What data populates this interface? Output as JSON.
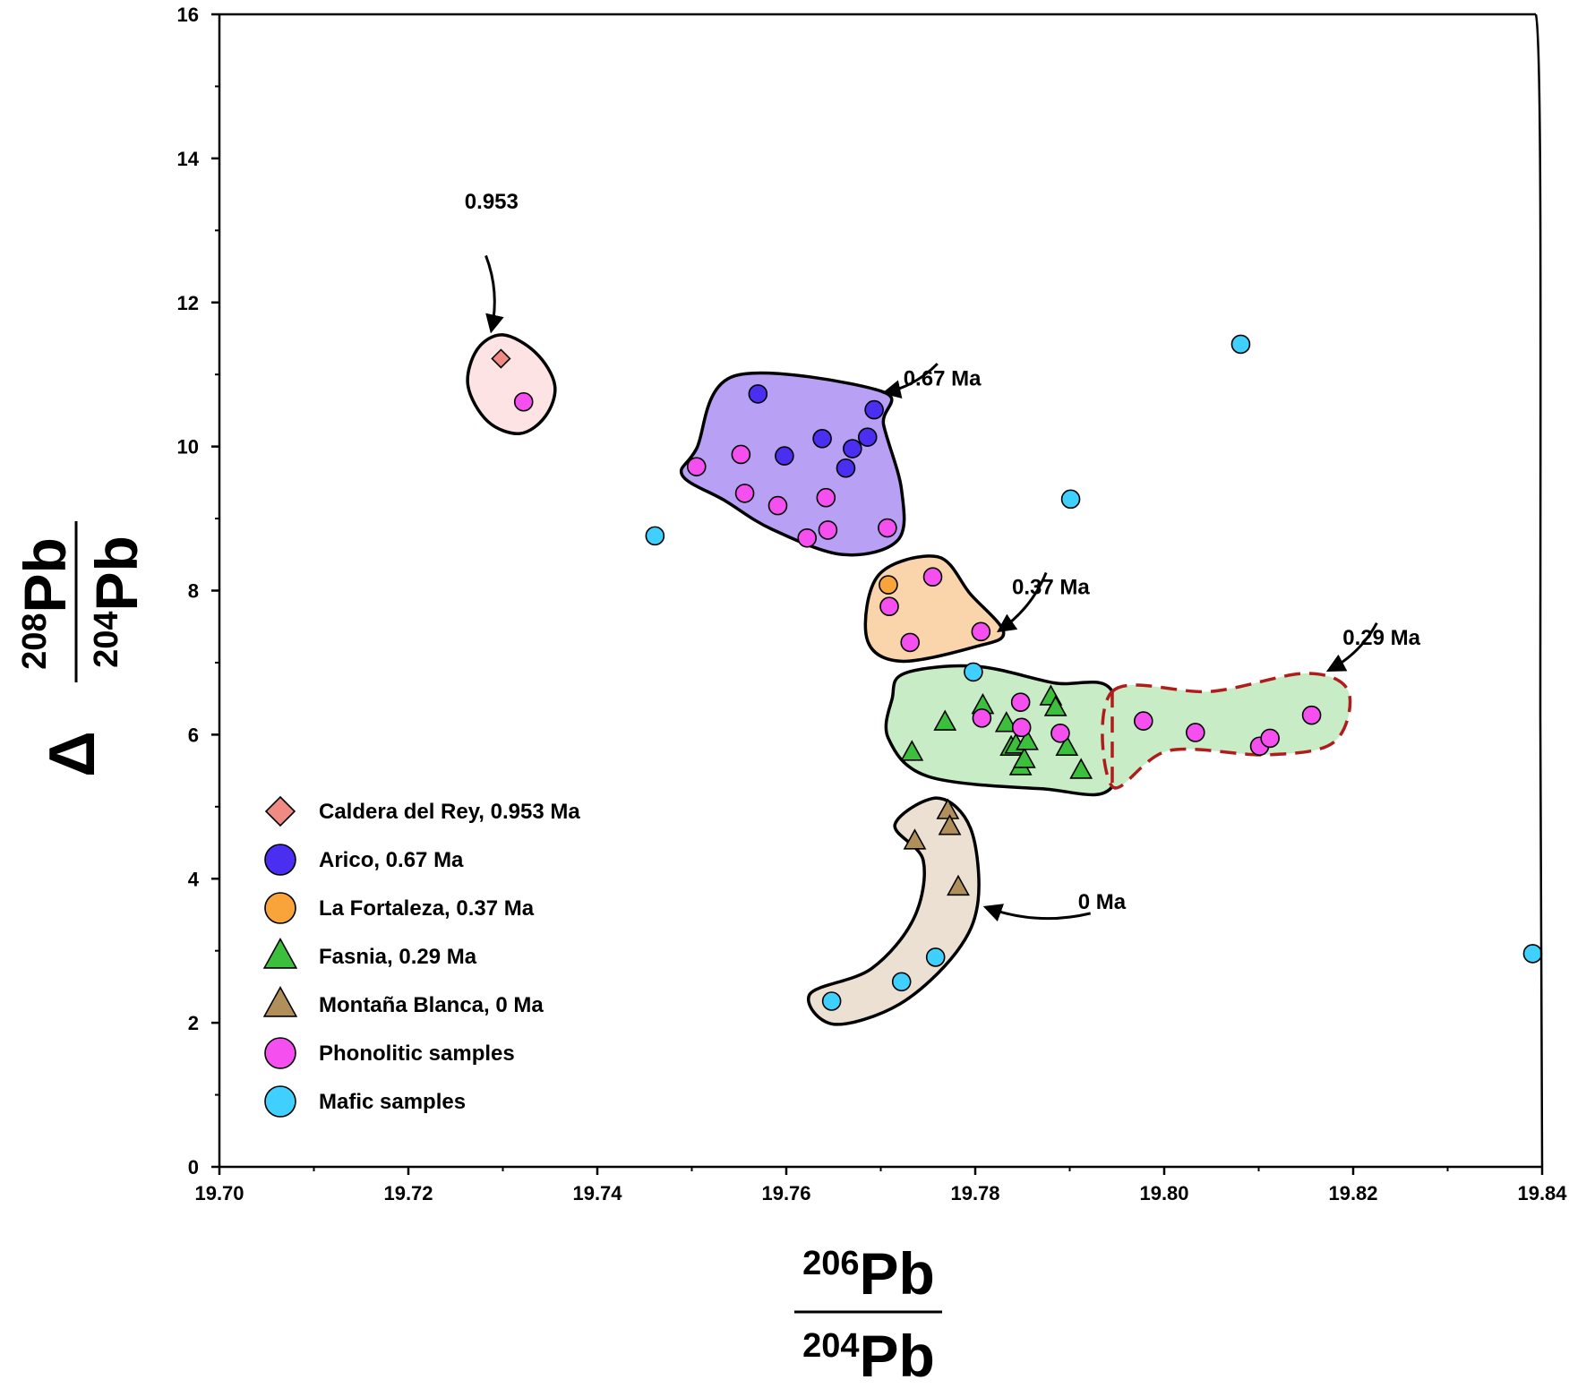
{
  "chart_data": {
    "type": "scatter",
    "xlim": [
      19.7,
      19.84
    ],
    "ylim": [
      0,
      16
    ],
    "x_ticks": [
      "19.70",
      "19.72",
      "19.74",
      "19.76",
      "19.78",
      "19.80",
      "19.82",
      "19.84"
    ],
    "y_ticks": [
      "0",
      "2",
      "4",
      "6",
      "8",
      "10",
      "12",
      "14",
      "16"
    ],
    "xlabel": {
      "iso1_mass": "206",
      "iso1": "Pb",
      "iso2_mass": "204",
      "iso2": "Pb"
    },
    "ylabel": {
      "prefix": "Δ",
      "iso1_mass": "208",
      "iso1": "Pb",
      "iso2_mass": "204",
      "iso2": "Pb"
    },
    "grid": false,
    "legend_position": "bottom-left",
    "series": [
      {
        "name": "Caldera del Rey, 0.953 Ma",
        "marker": "diamond",
        "color": "#f08a84",
        "points": [
          [
            19.7298,
            11.22
          ]
        ]
      },
      {
        "name": "Arico, 0.67 Ma",
        "marker": "circle",
        "color": "#4a2ff0",
        "points": [
          [
            19.757,
            10.73
          ],
          [
            19.7598,
            9.87
          ],
          [
            19.7638,
            10.11
          ],
          [
            19.7663,
            9.7
          ],
          [
            19.767,
            9.97
          ],
          [
            19.7686,
            10.13
          ],
          [
            19.7693,
            10.51
          ]
        ]
      },
      {
        "name": "La Fortaleza, 0.37 Ma",
        "marker": "circle",
        "color": "#f8a43a",
        "points": [
          [
            19.7708,
            8.08
          ]
        ]
      },
      {
        "name": "Fasnia, 0.29 Ma",
        "marker": "triangle",
        "color": "#3cbf3c",
        "points": [
          [
            19.7733,
            5.75
          ],
          [
            19.7768,
            6.17
          ],
          [
            19.7808,
            6.4
          ],
          [
            19.7833,
            6.15
          ],
          [
            19.7838,
            5.82
          ],
          [
            19.7843,
            5.85
          ],
          [
            19.7848,
            5.55
          ],
          [
            19.7852,
            5.65
          ],
          [
            19.7855,
            5.9
          ],
          [
            19.788,
            6.52
          ],
          [
            19.7885,
            6.37
          ],
          [
            19.7897,
            5.82
          ],
          [
            19.7912,
            5.5
          ]
        ]
      },
      {
        "name": "Montaña Blanca, 0 Ma",
        "marker": "triangle",
        "color": "#b08f5a",
        "points": [
          [
            19.7736,
            4.52
          ],
          [
            19.7771,
            4.94
          ],
          [
            19.7773,
            4.72
          ],
          [
            19.7782,
            3.88
          ]
        ]
      },
      {
        "name": "Phonolitic samples",
        "marker": "circle",
        "color": "#f64ff0",
        "points": [
          [
            19.7322,
            10.62
          ],
          [
            19.7505,
            9.72
          ],
          [
            19.7552,
            9.89
          ],
          [
            19.7556,
            9.35
          ],
          [
            19.7591,
            9.18
          ],
          [
            19.7642,
            9.29
          ],
          [
            19.7644,
            8.84
          ],
          [
            19.7622,
            8.73
          ],
          [
            19.7707,
            8.87
          ],
          [
            19.7709,
            7.78
          ],
          [
            19.7731,
            7.28
          ],
          [
            19.7755,
            8.19
          ],
          [
            19.7806,
            7.43
          ],
          [
            19.7807,
            6.23
          ],
          [
            19.7848,
            6.45
          ],
          [
            19.7849,
            6.1
          ],
          [
            19.789,
            6.02
          ],
          [
            19.7978,
            6.19
          ],
          [
            19.8033,
            6.03
          ],
          [
            19.8101,
            5.84
          ],
          [
            19.8112,
            5.95
          ],
          [
            19.8156,
            6.27
          ]
        ]
      },
      {
        "name": "Mafic samples",
        "marker": "circle",
        "color": "#3fd0ff",
        "points": [
          [
            19.7461,
            8.76
          ],
          [
            19.7648,
            2.3
          ],
          [
            19.7722,
            2.57
          ],
          [
            19.7758,
            2.91
          ],
          [
            19.7798,
            6.87
          ],
          [
            19.7901,
            9.27
          ],
          [
            19.8081,
            11.42
          ],
          [
            19.839,
            2.96
          ]
        ]
      }
    ],
    "groups": [
      {
        "label": "Caldera del Rey",
        "fill": "#fde3e3",
        "dashed": false,
        "outline": [
          [
            19.73,
            11.55
          ],
          [
            19.7335,
            11.3
          ],
          [
            19.7355,
            10.85
          ],
          [
            19.7345,
            10.42
          ],
          [
            19.7318,
            10.18
          ],
          [
            19.7284,
            10.35
          ],
          [
            19.7263,
            10.85
          ],
          [
            19.7273,
            11.35
          ]
        ]
      },
      {
        "label": "Arico",
        "fill": "#b8a0f5",
        "dashed": false,
        "outline": [
          [
            19.7545,
            10.98
          ],
          [
            19.77,
            10.77
          ],
          [
            19.7703,
            10.3
          ],
          [
            19.7722,
            9.4
          ],
          [
            19.7718,
            8.7
          ],
          [
            19.766,
            8.5
          ],
          [
            19.7585,
            8.85
          ],
          [
            19.7535,
            9.25
          ],
          [
            19.749,
            9.6
          ],
          [
            19.7505,
            9.97
          ]
        ]
      },
      {
        "label": "La Fortaleza",
        "fill": "#fad5ac",
        "dashed": false,
        "outline": [
          [
            19.776,
            8.47
          ],
          [
            19.7795,
            7.95
          ],
          [
            19.783,
            7.42
          ],
          [
            19.78,
            7.22
          ],
          [
            19.772,
            7.02
          ],
          [
            19.7685,
            7.35
          ],
          [
            19.7698,
            8.22
          ]
        ]
      },
      {
        "label": "Fasnia",
        "fill": "#c8edc6",
        "dashed": false,
        "outline": [
          [
            19.7725,
            6.85
          ],
          [
            19.78,
            6.95
          ],
          [
            19.7883,
            6.72
          ],
          [
            19.7945,
            6.6
          ],
          [
            19.7945,
            5.28
          ],
          [
            19.787,
            5.25
          ],
          [
            19.775,
            5.42
          ],
          [
            19.7708,
            5.95
          ],
          [
            19.7712,
            6.5
          ]
        ]
      },
      {
        "label": "0.29 Ma extension",
        "fill": "#c8edc6",
        "dashed": true,
        "outline": [
          [
            19.7945,
            6.6
          ],
          [
            19.805,
            6.6
          ],
          [
            19.815,
            6.85
          ],
          [
            19.8195,
            6.6
          ],
          [
            19.818,
            5.9
          ],
          [
            19.811,
            5.72
          ],
          [
            19.8005,
            5.78
          ],
          [
            19.7945,
            5.28
          ]
        ]
      },
      {
        "label": "Montaña Blanca",
        "fill": "#ece0d2",
        "dashed": false,
        "outline": [
          [
            19.776,
            5.12
          ],
          [
            19.7795,
            4.7
          ],
          [
            19.7803,
            3.7
          ],
          [
            19.778,
            2.98
          ],
          [
            19.772,
            2.26
          ],
          [
            19.765,
            1.98
          ],
          [
            19.7625,
            2.4
          ],
          [
            19.769,
            2.75
          ],
          [
            19.7735,
            3.45
          ],
          [
            19.7745,
            4.25
          ],
          [
            19.7715,
            4.75
          ]
        ]
      }
    ],
    "annotations": [
      {
        "text": "0.953",
        "x": 19.7288,
        "y": 13.3
      },
      {
        "text": "0.67 Ma",
        "x": 19.7765,
        "y": 10.85
      },
      {
        "text": "0.37 Ma",
        "x": 19.788,
        "y": 7.95
      },
      {
        "text": "0.29 Ma",
        "x": 19.823,
        "y": 7.25
      },
      {
        "text": "0 Ma",
        "x": 19.7934,
        "y": 3.58
      }
    ],
    "arrows": [
      {
        "from": [
          19.7282,
          12.65
        ],
        "to": [
          19.7288,
          11.62
        ]
      },
      {
        "from": [
          19.776,
          11.15
        ],
        "to": [
          19.7705,
          10.75
        ]
      },
      {
        "from": [
          19.7875,
          8.25
        ],
        "to": [
          19.7826,
          7.45
        ]
      },
      {
        "from": [
          19.8225,
          7.55
        ],
        "to": [
          19.8175,
          6.9
        ]
      },
      {
        "from": [
          19.7922,
          3.52
        ],
        "to": [
          19.7812,
          3.6
        ]
      }
    ]
  }
}
